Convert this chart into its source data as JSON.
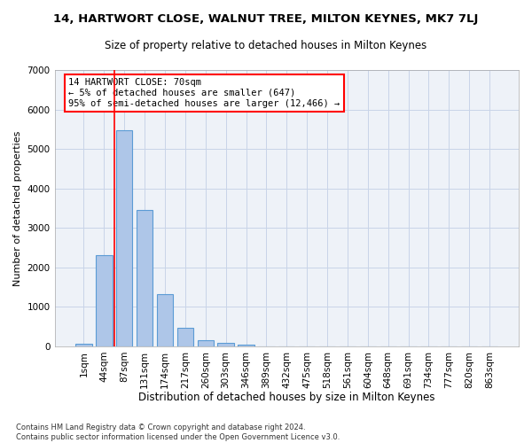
{
  "title1": "14, HARTWORT CLOSE, WALNUT TREE, MILTON KEYNES, MK7 7LJ",
  "title2": "Size of property relative to detached houses in Milton Keynes",
  "xlabel": "Distribution of detached houses by size in Milton Keynes",
  "ylabel": "Number of detached properties",
  "footnote1": "Contains HM Land Registry data © Crown copyright and database right 2024.",
  "footnote2": "Contains public sector information licensed under the Open Government Licence v3.0.",
  "annotation_title": "14 HARTWORT CLOSE: 70sqm",
  "annotation_line1": "← 5% of detached houses are smaller (647)",
  "annotation_line2": "95% of semi-detached houses are larger (12,466) →",
  "bar_labels": [
    "1sqm",
    "44sqm",
    "87sqm",
    "131sqm",
    "174sqm",
    "217sqm",
    "260sqm",
    "303sqm",
    "346sqm",
    "389sqm",
    "432sqm",
    "475sqm",
    "518sqm",
    "561sqm",
    "604sqm",
    "648sqm",
    "691sqm",
    "734sqm",
    "777sqm",
    "820sqm",
    "863sqm"
  ],
  "bar_values": [
    70,
    2300,
    5480,
    3460,
    1320,
    460,
    160,
    80,
    50,
    0,
    0,
    0,
    0,
    0,
    0,
    0,
    0,
    0,
    0,
    0,
    0
  ],
  "bar_color": "#aec6e8",
  "bar_edge_color": "#5b9bd5",
  "bar_edge_width": 0.8,
  "grid_color": "#c8d4e8",
  "bg_color": "#eef2f8",
  "red_line_x": 1.5,
  "ylim": [
    0,
    7000
  ],
  "yticks": [
    0,
    1000,
    2000,
    3000,
    4000,
    5000,
    6000,
    7000
  ]
}
